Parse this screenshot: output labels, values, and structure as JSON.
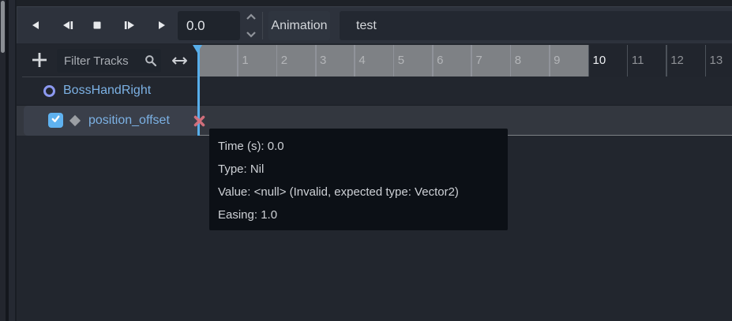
{
  "toolbar": {
    "playback_icons": [
      "play-backwards",
      "play-backwards-from-end",
      "stop",
      "play-from-start",
      "play"
    ],
    "time_value": "0.0",
    "animation_label": "Animation",
    "animation_name": "test"
  },
  "track_toolbar": {
    "filter_placeholder": "Filter Tracks"
  },
  "timeline": {
    "playhead_time": "0.0",
    "animation_length": "10",
    "ticks": [
      {
        "label": "1",
        "zone": "in"
      },
      {
        "label": "2",
        "zone": "in"
      },
      {
        "label": "3",
        "zone": "in"
      },
      {
        "label": "4",
        "zone": "in"
      },
      {
        "label": "5",
        "zone": "in"
      },
      {
        "label": "6",
        "zone": "in"
      },
      {
        "label": "7",
        "zone": "in"
      },
      {
        "label": "8",
        "zone": "in"
      },
      {
        "label": "9",
        "zone": "in"
      },
      {
        "label": "10",
        "zone": "end"
      },
      {
        "label": "11",
        "zone": "out"
      },
      {
        "label": "12",
        "zone": "out"
      },
      {
        "label": "13",
        "zone": "out"
      }
    ]
  },
  "tracks": [
    {
      "name": "BossHandRight",
      "kind": "node"
    },
    {
      "name": "position_offset",
      "kind": "property",
      "enabled": true,
      "key_state": "invalid"
    }
  ],
  "key_tooltip": {
    "lines": [
      "Time (s): 0.0",
      "Type: Nil",
      "Value: <null> (Invalid, expected type: Vector2)",
      "Easing: 1.0"
    ]
  },
  "colors": {
    "accent_blue": "#5fb2f0",
    "track_text_blue": "#7cb1e4",
    "invalid_key_red": "#d9717e",
    "ruler_active_gray": "#7e8185",
    "node_icon_purple": "#8c99f0"
  }
}
